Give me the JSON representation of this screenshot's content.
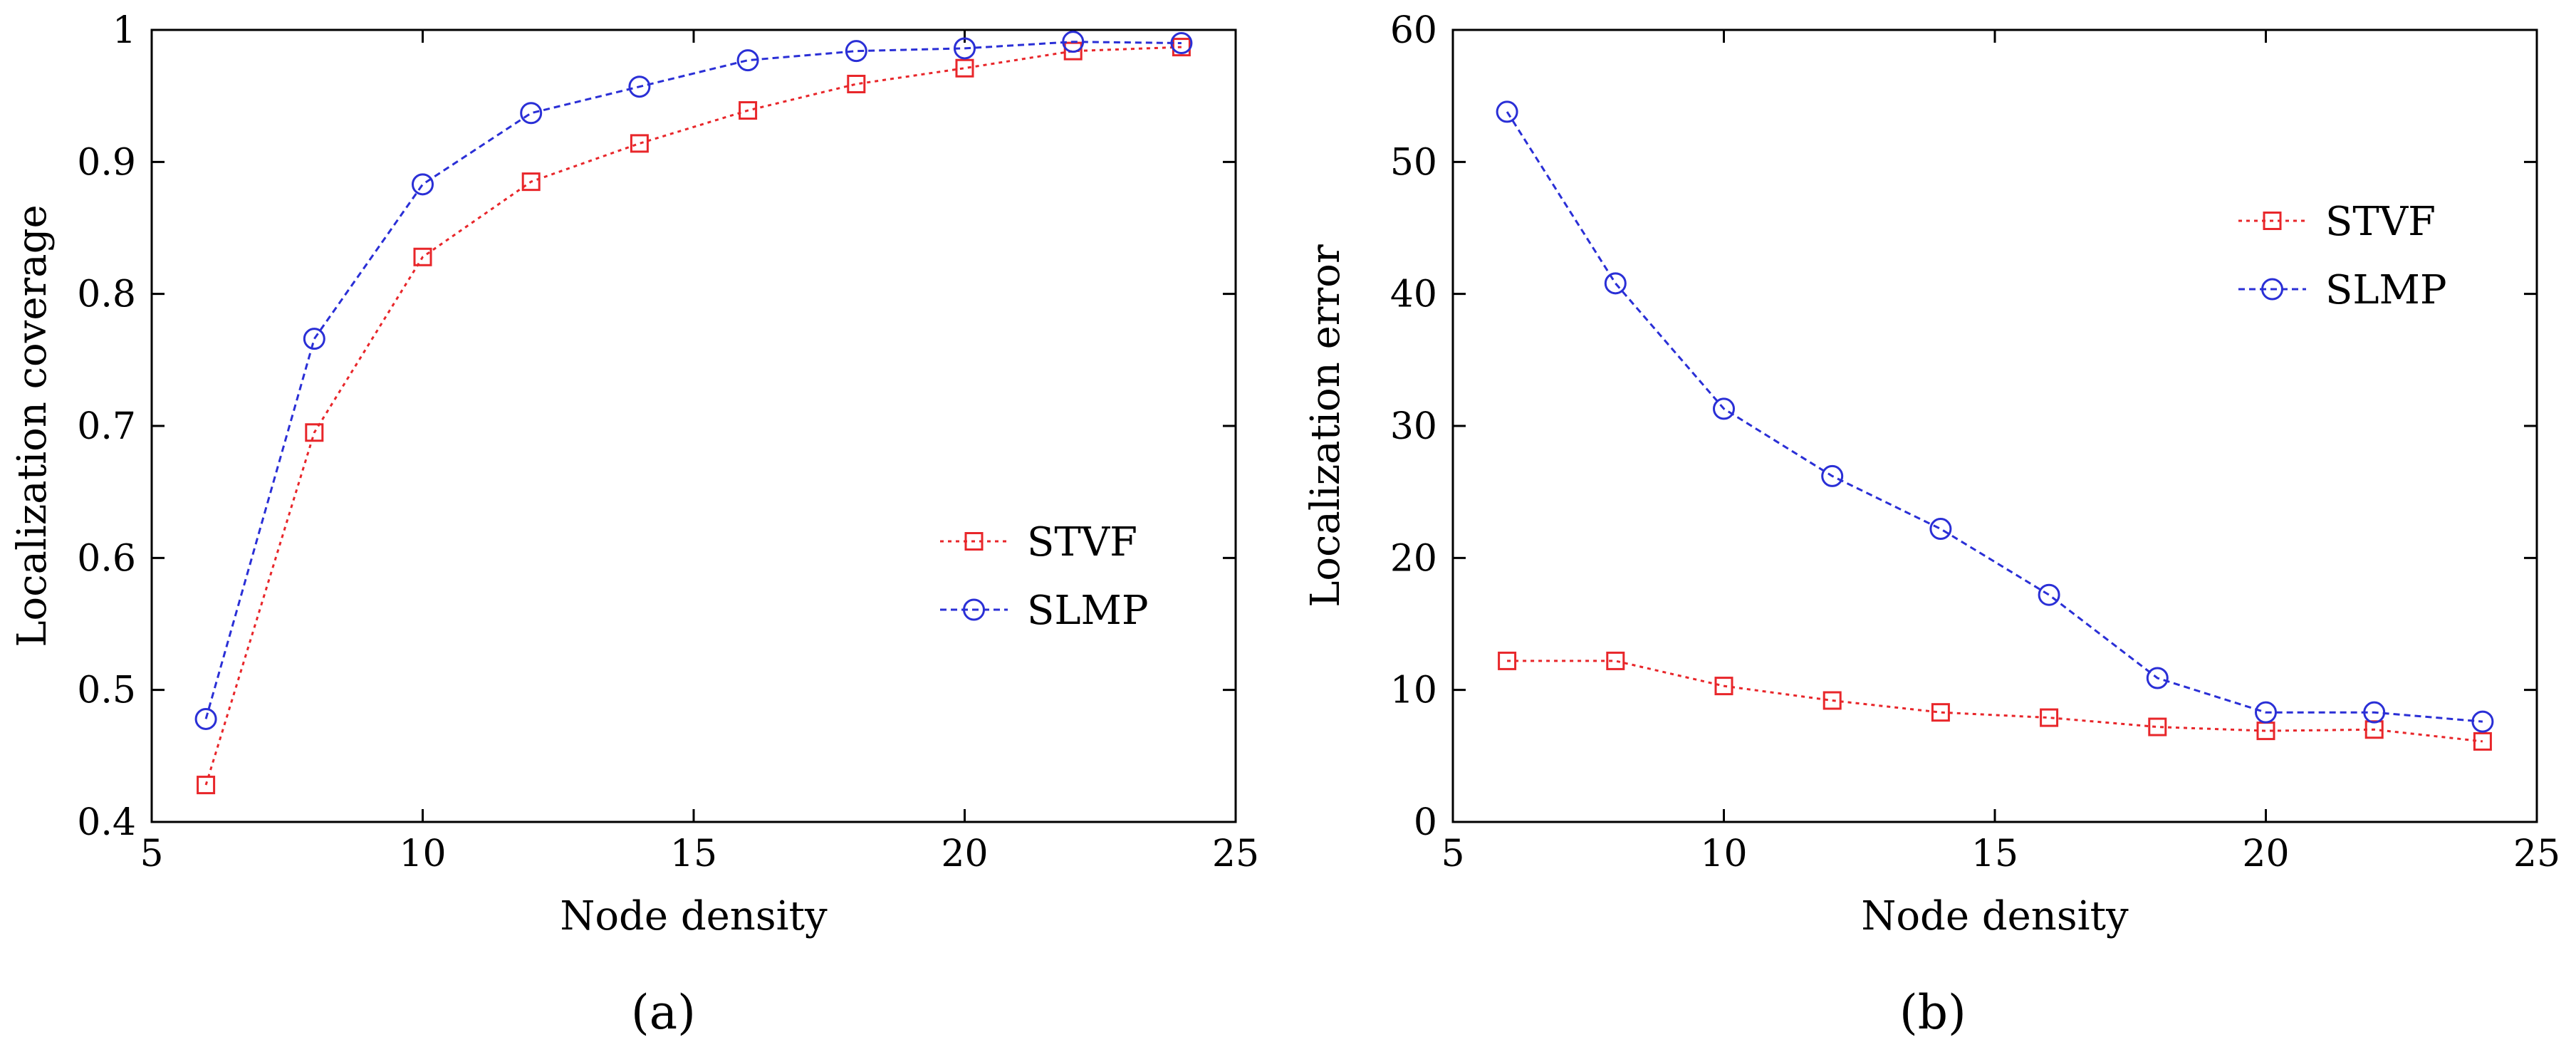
{
  "figure_labels": [
    "(a)",
    "(b)"
  ],
  "chart_data": [
    {
      "type": "line",
      "panel": "(a)",
      "xlabel": "Node density",
      "ylabel": "Localization coverage",
      "xlim": [
        5,
        25
      ],
      "ylim": [
        0.4,
        1
      ],
      "xticks": [
        5,
        10,
        15,
        20,
        25
      ],
      "yticks": [
        0.4,
        0.5,
        0.6,
        0.7,
        0.8,
        0.9,
        1
      ],
      "ytick_labels": [
        "0.4",
        "0.5",
        "0.6",
        "0.7",
        "0.8",
        "0.9",
        "1"
      ],
      "grid": false,
      "legend_position": "center-right",
      "x": [
        6,
        8,
        10,
        12,
        14,
        16,
        18,
        20,
        22,
        24
      ],
      "series": [
        {
          "name": "STVF",
          "color": "#e8262a",
          "marker": "square",
          "dash": "dotted",
          "values": [
            0.428,
            0.695,
            0.828,
            0.885,
            0.914,
            0.939,
            0.959,
            0.971,
            0.984,
            0.987
          ]
        },
        {
          "name": "SLMP",
          "color": "#2a2fd6",
          "marker": "circle",
          "dash": "dashed",
          "values": [
            0.478,
            0.766,
            0.883,
            0.937,
            0.957,
            0.977,
            0.984,
            0.986,
            0.991,
            0.99
          ]
        }
      ]
    },
    {
      "type": "line",
      "panel": "(b)",
      "xlabel": "Node density",
      "ylabel": "Localization error",
      "xlim": [
        5,
        25
      ],
      "ylim": [
        0,
        60
      ],
      "xticks": [
        5,
        10,
        15,
        20,
        25
      ],
      "yticks": [
        0,
        10,
        20,
        30,
        40,
        50,
        60
      ],
      "ytick_labels": [
        "0",
        "10",
        "20",
        "30",
        "40",
        "50",
        "60"
      ],
      "grid": false,
      "legend_position": "top-right",
      "x": [
        6,
        8,
        10,
        12,
        14,
        16,
        18,
        20,
        22,
        24
      ],
      "series": [
        {
          "name": "STVF",
          "color": "#e8262a",
          "marker": "square",
          "dash": "dotted",
          "values": [
            12.2,
            12.2,
            10.3,
            9.2,
            8.3,
            7.9,
            7.2,
            6.9,
            7.0,
            6.1
          ]
        },
        {
          "name": "SLMP",
          "color": "#2a2fd6",
          "marker": "circle",
          "dash": "dashed",
          "values": [
            53.8,
            40.8,
            31.3,
            26.2,
            22.2,
            17.2,
            10.9,
            8.3,
            8.3,
            7.6
          ]
        }
      ]
    }
  ]
}
